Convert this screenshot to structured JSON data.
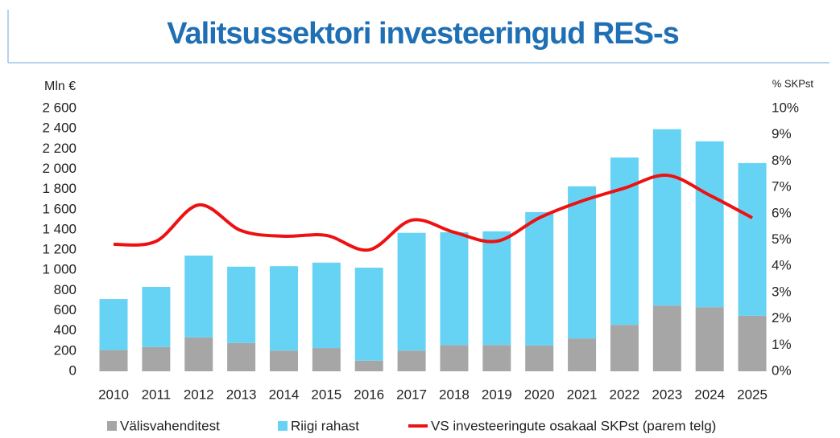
{
  "chart_data": {
    "type": "bar",
    "title": "Valitsussektori investeeringud RES-s",
    "y_label": "Mln €",
    "y2_label": "% SKPst",
    "categories": [
      "2010",
      "2011",
      "2012",
      "2013",
      "2014",
      "2015",
      "2016",
      "2017",
      "2018",
      "2019",
      "2020",
      "2021",
      "2022",
      "2023",
      "2024",
      "2025"
    ],
    "series": [
      {
        "name": "Välisvahenditest",
        "color": "#a6a6a6",
        "values": [
          210,
          240,
          335,
          280,
          205,
          230,
          105,
          205,
          260,
          260,
          255,
          325,
          460,
          650,
          635,
          550
        ]
      },
      {
        "name": "Riigi rahast",
        "color": "#66d3f5",
        "values": [
          505,
          595,
          810,
          755,
          835,
          845,
          920,
          1165,
          1115,
          1125,
          1320,
          1505,
          1655,
          1745,
          1640,
          1510
        ]
      },
      {
        "name": "VS investeeringute osakaal SKPst (parem telg)",
        "color": "#ee1111",
        "axis": "y2",
        "type": "line",
        "values": [
          4.83,
          4.95,
          6.33,
          5.35,
          5.14,
          5.17,
          4.62,
          5.75,
          5.29,
          4.95,
          5.84,
          6.48,
          6.97,
          7.46,
          6.7,
          5.84
        ]
      }
    ],
    "ylim": [
      0,
      2600
    ],
    "yticks": [
      0,
      200,
      400,
      600,
      800,
      {
        "value": 1000,
        "label": "1 000"
      },
      {
        "value": 1200,
        "label": "1 200"
      },
      {
        "value": 1400,
        "label": "1 400"
      },
      {
        "value": 1600,
        "label": "1 600"
      },
      {
        "value": 1800,
        "label": "1 800"
      },
      {
        "value": 2000,
        "label": "2 000"
      },
      {
        "value": 2200,
        "label": "2 200"
      },
      {
        "value": 2400,
        "label": "2 400"
      },
      {
        "value": 2600,
        "label": "2 600"
      }
    ],
    "y2lim": [
      0,
      10
    ],
    "y2ticks": [
      {
        "value": 0,
        "label": "0%"
      },
      {
        "value": 1,
        "label": "1%"
      },
      {
        "value": 2,
        "label": "2%"
      },
      {
        "value": 3,
        "label": "3%"
      },
      {
        "value": 4,
        "label": "4%"
      },
      {
        "value": 5,
        "label": "5%"
      },
      {
        "value": 6,
        "label": "6%"
      },
      {
        "value": 7,
        "label": "7%"
      },
      {
        "value": 8,
        "label": "8%"
      },
      {
        "value": 9,
        "label": "9%"
      },
      {
        "value": 10,
        "label": "10%"
      }
    ],
    "stacked": true,
    "grid": false
  }
}
